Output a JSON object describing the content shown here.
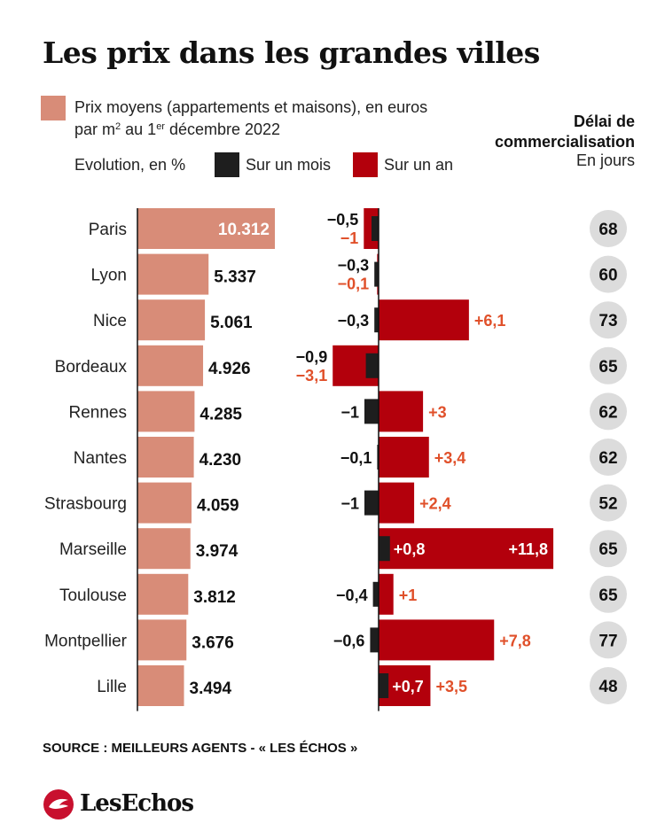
{
  "title": "Les prix dans les grandes villes",
  "legend": {
    "price_line1": "Prix moyens (appartements et maisons), en euros",
    "price_line2_a": "par m",
    "price_line2_sup1": "2",
    "price_line2_b": " au 1",
    "price_line2_sup2": "er",
    "price_line2_c": " décembre 2022",
    "evolution_label": "Evolution, en %",
    "month_label": "Sur un mois",
    "year_label": "Sur un an"
  },
  "delai": {
    "title_line1": "Délai de",
    "title_line2": "commercialisation",
    "unit": "En jours"
  },
  "colors": {
    "price": "#d88c78",
    "month": "#1e1e1e",
    "year": "#b3000c",
    "year_text": "#e0502a",
    "circle": "#dcdcdc"
  },
  "chart_data": {
    "type": "bar",
    "categories": [
      "Paris",
      "Lyon",
      "Nice",
      "Bordeaux",
      "Rennes",
      "Nantes",
      "Strasbourg",
      "Marseille",
      "Toulouse",
      "Montpellier",
      "Lille"
    ],
    "series": [
      {
        "name": "Prix moyens (appartements et maisons), en euros par m2 au 1er décembre 2022",
        "values": [
          10312,
          5337,
          5061,
          4926,
          4285,
          4230,
          4059,
          3974,
          3812,
          3676,
          3494
        ],
        "labels": [
          "10.312",
          "5.337",
          "5.061",
          "4.926",
          "4.285",
          "4.230",
          "4.059",
          "3.974",
          "3.812",
          "3.676",
          "3.494"
        ]
      },
      {
        "name": "Sur un mois",
        "values": [
          -0.5,
          -0.3,
          -0.3,
          -0.9,
          -1,
          -0.1,
          -1,
          0.8,
          -0.4,
          -0.6,
          0.7
        ],
        "labels": [
          "−0,5",
          "−0,3",
          "−0,3",
          "−0,9",
          "−1",
          "−0,1",
          "−1",
          "+0,8",
          "−0,4",
          "−0,6",
          "+0,7"
        ]
      },
      {
        "name": "Sur un an",
        "values": [
          -1,
          -0.1,
          6.1,
          -3.1,
          3,
          3.4,
          2.4,
          11.8,
          1,
          7.8,
          3.5
        ],
        "labels": [
          "−1",
          "−0,1",
          "+6,1",
          "−3,1",
          "+3",
          "+3,4",
          "+2,4",
          "+11,8",
          "+1",
          "+7,8",
          "+3,5"
        ]
      },
      {
        "name": "Délai de commercialisation",
        "values": [
          68,
          60,
          73,
          65,
          62,
          62,
          52,
          65,
          65,
          77,
          48
        ]
      }
    ]
  },
  "source": "SOURCE : MEILLEURS AGENTS - « LES ÉCHOS »",
  "logo": {
    "word": "LesEchos"
  }
}
